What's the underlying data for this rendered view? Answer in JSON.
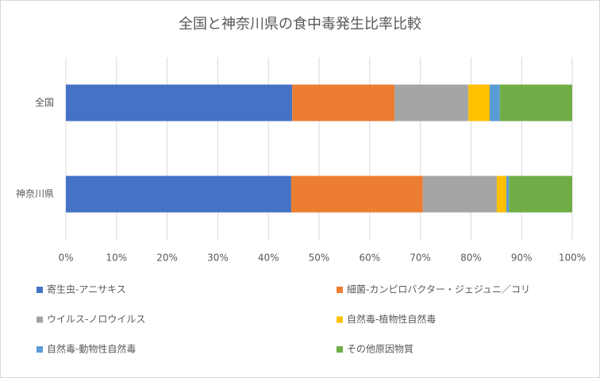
{
  "chart_data": {
    "type": "stacked_bar_horizontal",
    "title": "全国と神奈川県の食中毒発生比率比較",
    "categories": [
      "全国",
      "神奈川県"
    ],
    "series": [
      {
        "name": "寄生虫-アニサキス",
        "color": "#4472c4",
        "values": [
          44.7,
          44.5
        ]
      },
      {
        "name": "細菌-カンピロバクター・ジェジュニ／コリ",
        "color": "#ed7d31",
        "values": [
          20.2,
          26.0
        ]
      },
      {
        "name": "ウイルス-ノロウイルス",
        "color": "#a5a5a5",
        "values": [
          14.6,
          14.6
        ]
      },
      {
        "name": "自然毒-植物性自然毒",
        "color": "#ffc000",
        "values": [
          4.2,
          1.9
        ]
      },
      {
        "name": "自然毒-動物性自然毒",
        "color": "#5b9bd5",
        "values": [
          2.0,
          0.5
        ]
      },
      {
        "name": "その他原因物質",
        "color": "#70ad47",
        "values": [
          14.3,
          12.5
        ]
      }
    ],
    "xlim": [
      0,
      100
    ],
    "xticks": [
      {
        "value": 0,
        "label": "0%"
      },
      {
        "value": 10,
        "label": "10%"
      },
      {
        "value": 20,
        "label": "20%"
      },
      {
        "value": 30,
        "label": "30%"
      },
      {
        "value": 40,
        "label": "40%"
      },
      {
        "value": 50,
        "label": "50%"
      },
      {
        "value": 60,
        "label": "60%"
      },
      {
        "value": 70,
        "label": "70%"
      },
      {
        "value": 80,
        "label": "80%"
      },
      {
        "value": 90,
        "label": "90%"
      },
      {
        "value": 100,
        "label": "100%"
      }
    ],
    "grid": true,
    "legend": "bottom"
  }
}
